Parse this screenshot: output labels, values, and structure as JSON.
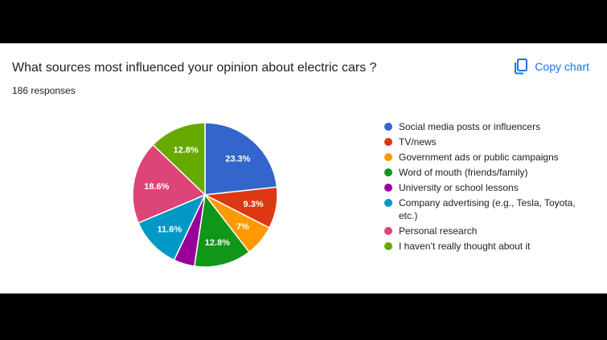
{
  "title": "What sources most influenced your opinion about electric cars ?",
  "responses": "186 responses",
  "copy_chart_label": "Copy chart",
  "icons": {
    "copy": "copy-icon"
  },
  "chart_data": {
    "type": "pie",
    "title": "What sources most influenced your opinion about electric cars ?",
    "total_responses": 186,
    "legend_position": "right",
    "categories": [
      "Social media posts or influencers",
      "TV/news",
      "Government ads or public campaigns",
      "Word of mouth (friends/family)",
      "University or school lessons",
      "Company advertising (e.g., Tesla, Toyota, etc.)",
      "Personal research",
      "I haven’t really thought about it"
    ],
    "values": [
      23.3,
      9.3,
      7.0,
      12.8,
      4.7,
      11.6,
      18.6,
      12.8
    ],
    "labels": [
      "23.3%",
      "9.3%",
      "7%",
      "12.8%",
      "",
      "11.6%",
      "18.6%",
      "12.8%"
    ],
    "colors": [
      "#3366cc",
      "#dc3912",
      "#ff9900",
      "#109618",
      "#990099",
      "#0099c6",
      "#dd4477",
      "#66aa00"
    ]
  }
}
